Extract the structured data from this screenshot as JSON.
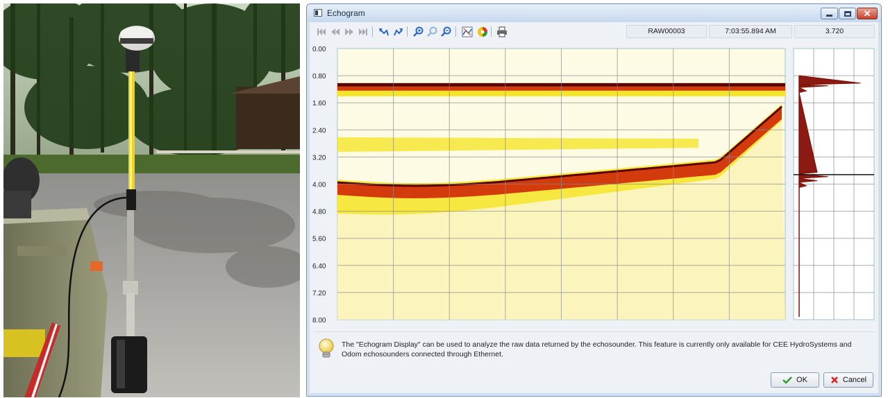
{
  "window": {
    "title": "Echogram",
    "min_icon": "minimize-icon",
    "max_icon": "maximize-icon",
    "close_icon": "close-icon"
  },
  "toolbar": {
    "icons": [
      "first-record-icon",
      "step-back-icon",
      "step-forward-icon",
      "last-record-icon",
      "undo-view-icon",
      "redo-view-icon",
      "zoom-in-icon",
      "zoom-reset-icon",
      "zoom-out-icon",
      "bottom-track-icon",
      "color-palette-icon",
      "print-icon"
    ],
    "file_name": "RAW00003",
    "time": "7:03:55.894 AM",
    "depth_value": "3.720"
  },
  "echogram": {
    "y_ticks": [
      "0.00",
      "0.80",
      "1.60",
      "2.40",
      "3.20",
      "4.00",
      "4.80",
      "5.60",
      "6.40",
      "7.20",
      "8.00"
    ],
    "y_range": [
      0,
      8
    ],
    "cursor_depth": 3.72,
    "colors": {
      "grid": "#8a8a8a",
      "cursor": "#111111",
      "strong": "#5a0000",
      "medium": "#d43b0c",
      "weak": "#f5e52a",
      "background": "#fdfbe3"
    }
  },
  "info": {
    "icon": "lightbulb-icon",
    "text": "The \"Echogram Display\" can be used to analyze the raw data returned by the echosounder. This feature is currently only available for CEE HydroSystems and Odom echosounders connected through Ethernet."
  },
  "buttons": {
    "ok": "OK",
    "ok_icon": "check-icon",
    "cancel": "Cancel",
    "cancel_icon": "cross-icon"
  },
  "photo": {
    "subject": "gps-antenna-pole-photo"
  }
}
